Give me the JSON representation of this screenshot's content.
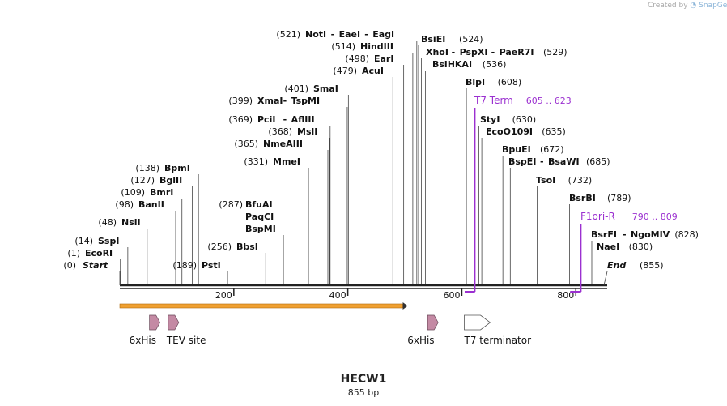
{
  "credit": {
    "prefix": "Created by",
    "brand": "SnapGene"
  },
  "map": {
    "title": "HECW1",
    "length_label": "855 bp",
    "length": 855,
    "axis_ticks": [
      {
        "pos": 200,
        "label": "200"
      },
      {
        "pos": 400,
        "label": "400"
      },
      {
        "pos": 600,
        "label": "600"
      },
      {
        "pos": 800,
        "label": "800"
      }
    ],
    "ends": [
      {
        "pos": 0,
        "pos_label": "(0)",
        "name": "Start",
        "side": "left"
      },
      {
        "pos": 855,
        "pos_label": "(855)",
        "name": "End",
        "side": "right"
      }
    ]
  },
  "sites": [
    {
      "names": [
        "EcoRI"
      ],
      "pos": 1,
      "pos_label": "(1)",
      "side": "left"
    },
    {
      "names": [
        "SspI"
      ],
      "pos": 14,
      "pos_label": "(14)",
      "side": "left"
    },
    {
      "names": [
        "NsiI"
      ],
      "pos": 48,
      "pos_label": "(48)",
      "side": "left"
    },
    {
      "names": [
        "BanII"
      ],
      "pos": 98,
      "pos_label": "(98)",
      "side": "left"
    },
    {
      "names": [
        "BmrI"
      ],
      "pos": 109,
      "pos_label": "(109)",
      "side": "left"
    },
    {
      "names": [
        "BglII"
      ],
      "pos": 127,
      "pos_label": "(127)",
      "side": "left"
    },
    {
      "names": [
        "BpmI"
      ],
      "pos": 138,
      "pos_label": "(138)",
      "side": "left"
    },
    {
      "names": [
        "PstI"
      ],
      "pos": 189,
      "pos_label": "(189)",
      "side": "left"
    },
    {
      "names": [
        "BbsI"
      ],
      "pos": 256,
      "pos_label": "(256)",
      "side": "left"
    },
    {
      "names": [
        "BfuAI",
        "PaqCI",
        "BspMI"
      ],
      "pos": 287,
      "pos_label": "(287)",
      "side": "left"
    },
    {
      "names": [
        "MmeI"
      ],
      "pos": 331,
      "pos_label": "(331)",
      "side": "left"
    },
    {
      "names": [
        "NmeAIII"
      ],
      "pos": 365,
      "pos_label": "(365)",
      "side": "left"
    },
    {
      "names": [
        "MslI"
      ],
      "pos": 368,
      "pos_label": "(368)",
      "side": "left"
    },
    {
      "names": [
        "PciI",
        "AflIII"
      ],
      "pos": 369,
      "pos_label": "(369)",
      "side": "left"
    },
    {
      "names": [
        "XmaI",
        "TspMI"
      ],
      "pos": 399,
      "pos_label": "(399)",
      "side": "left"
    },
    {
      "names": [
        "SmaI"
      ],
      "pos": 401,
      "pos_label": "(401)",
      "side": "left"
    },
    {
      "names": [
        "AcuI"
      ],
      "pos": 479,
      "pos_label": "(479)",
      "side": "left"
    },
    {
      "names": [
        "EarI"
      ],
      "pos": 498,
      "pos_label": "(498)",
      "side": "left"
    },
    {
      "names": [
        "HindIII"
      ],
      "pos": 514,
      "pos_label": "(514)",
      "side": "left"
    },
    {
      "names": [
        "NotI",
        "EaeI",
        "EagI"
      ],
      "pos": 521,
      "pos_label": "(521)",
      "side": "left"
    },
    {
      "names": [
        "BsiEI"
      ],
      "pos": 524,
      "pos_label": "(524)",
      "side": "right"
    },
    {
      "names": [
        "XhoI",
        "PspXI",
        "PaeR7I"
      ],
      "pos": 529,
      "pos_label": "(529)",
      "side": "right"
    },
    {
      "names": [
        "BsiHKAI"
      ],
      "pos": 536,
      "pos_label": "(536)",
      "side": "right"
    },
    {
      "names": [
        "BlpI"
      ],
      "pos": 608,
      "pos_label": "(608)",
      "side": "right"
    },
    {
      "names": [
        "StyI"
      ],
      "pos": 630,
      "pos_label": "(630)",
      "side": "right"
    },
    {
      "names": [
        "EcoO109I"
      ],
      "pos": 635,
      "pos_label": "(635)",
      "side": "right"
    },
    {
      "names": [
        "BpuEI"
      ],
      "pos": 672,
      "pos_label": "(672)",
      "side": "right"
    },
    {
      "names": [
        "BspEI",
        "BsaWI"
      ],
      "pos": 685,
      "pos_label": "(685)",
      "side": "right"
    },
    {
      "names": [
        "TsoI"
      ],
      "pos": 732,
      "pos_label": "(732)",
      "side": "right"
    },
    {
      "names": [
        "BsrBI"
      ],
      "pos": 789,
      "pos_label": "(789)",
      "side": "right"
    },
    {
      "names": [
        "BsrFI",
        "NgoMIV"
      ],
      "pos": 828,
      "pos_label": "(828)",
      "side": "right"
    },
    {
      "names": [
        "NaeI"
      ],
      "pos": 830,
      "pos_label": "(830)",
      "side": "right"
    }
  ],
  "primers": [
    {
      "name": "T7 Term",
      "range_label": "605 .. 623",
      "start": 605,
      "end": 623,
      "color": "#9b30d0"
    },
    {
      "name": "F1ori-R",
      "range_label": "790 .. 809",
      "start": 790,
      "end": 809,
      "color": "#9b30d0"
    }
  ],
  "features": [
    {
      "kind": "orf",
      "start": 0,
      "end": 505,
      "color": "#f0a030"
    },
    {
      "kind": "tag",
      "label": "6xHis",
      "pos": 52,
      "color": "#c48aa4"
    },
    {
      "kind": "tag",
      "label": "TEV site",
      "pos": 85,
      "color": "#c48aa4"
    },
    {
      "kind": "tag",
      "label": "6xHis",
      "pos": 540,
      "color": "#c48aa4"
    },
    {
      "kind": "terminator",
      "label": "T7 terminator",
      "pos": 610,
      "color": "#ffffff"
    }
  ],
  "colors": {
    "line": "#222222",
    "text": "#111111",
    "primer": "#9b30d0"
  }
}
